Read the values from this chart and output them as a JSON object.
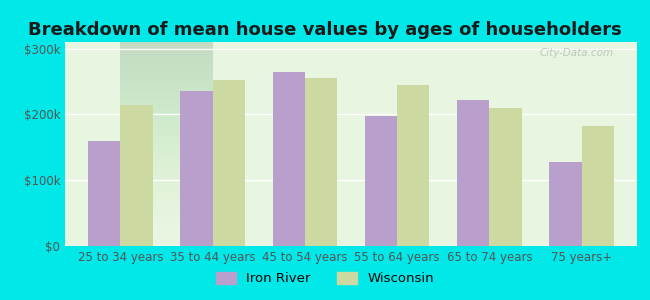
{
  "title": "Breakdown of mean house values by ages of householders",
  "categories": [
    "25 to 34 years",
    "35 to 44 years",
    "45 to 54 years",
    "55 to 64 years",
    "65 to 74 years",
    "75 years+"
  ],
  "iron_river": [
    160000,
    235000,
    265000,
    198000,
    222000,
    128000
  ],
  "wisconsin": [
    215000,
    252000,
    255000,
    245000,
    210000,
    183000
  ],
  "iron_river_color": "#b89fcc",
  "wisconsin_color": "#ccd9a0",
  "background_outer": "#00e8e8",
  "background_inner": "#e8f5e0",
  "ylim": [
    0,
    310000
  ],
  "yticks": [
    0,
    100000,
    200000,
    300000
  ],
  "ytick_labels": [
    "$0",
    "$100k",
    "$200k",
    "$300k"
  ],
  "legend_labels": [
    "Iron River",
    "Wisconsin"
  ],
  "title_fontsize": 13,
  "tick_fontsize": 8.5,
  "legend_fontsize": 9.5,
  "bar_width": 0.35,
  "watermark": "City-Data.com"
}
